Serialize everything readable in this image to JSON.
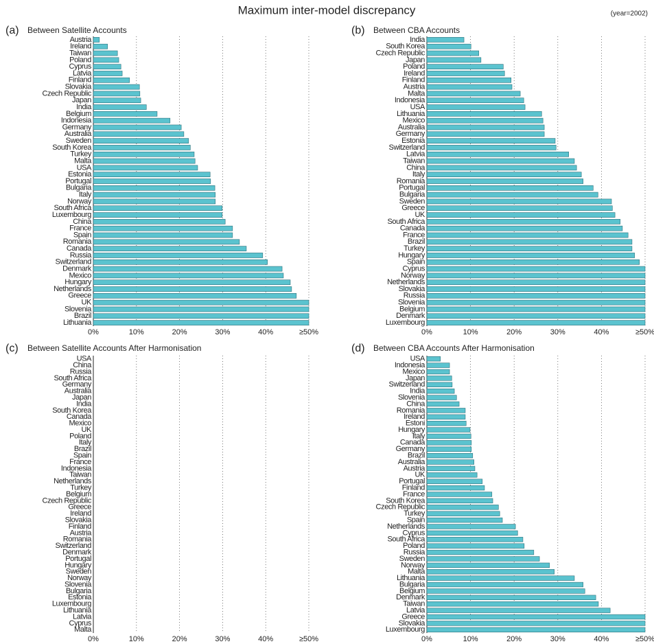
{
  "header": {
    "title": "Maximum inter-model discrepancy",
    "note": "(year=2002)"
  },
  "chart_data": [
    {
      "type": "bar",
      "orientation": "horizontal",
      "label": "(a)",
      "title": "Between Satellite Accounts",
      "color": "#5bc3cf",
      "categories": [
        "Austria",
        "Ireland",
        "Taiwan",
        "Poland",
        "Cyprus",
        "Latvia",
        "Finland",
        "Slovakia",
        "Czech Republic",
        "Japan",
        "India",
        "Belgium",
        "Indonesia",
        "Germany",
        "Australia",
        "Sweden",
        "South Korea",
        "Turkey",
        "Malta",
        "USA",
        "Estonia",
        "Portugal",
        "Bulgaria",
        "Italy",
        "Norway",
        "South Africa",
        "Luxembourg",
        "China",
        "France",
        "Spain",
        "Romania",
        "Canada",
        "Russia",
        "Switzerland",
        "Denmark",
        "Mexico",
        "Hungary",
        "Netherlands",
        "Greece",
        "UK",
        "Slovenia",
        "Brazil",
        "Lithuania"
      ],
      "values": [
        1.4,
        3.3,
        5.6,
        5.9,
        6.4,
        6.7,
        8.4,
        10.7,
        10.8,
        11.0,
        12.3,
        14.8,
        17.8,
        20.4,
        21.0,
        22.1,
        22.5,
        23.4,
        23.6,
        24.2,
        27.1,
        27.2,
        28.2,
        28.3,
        28.3,
        29.9,
        29.9,
        30.6,
        32.3,
        32.3,
        33.9,
        35.5,
        39.3,
        40.4,
        43.8,
        44.1,
        45.7,
        46.0,
        47.1,
        50,
        50,
        50,
        50
      ],
      "xlim": [
        0,
        50
      ],
      "xticks": [
        {
          "value": 0,
          "label": "0%"
        },
        {
          "value": 10,
          "label": "10%"
        },
        {
          "value": 20,
          "label": "20%"
        },
        {
          "value": 30,
          "label": "30%"
        },
        {
          "value": 40,
          "label": "40%"
        },
        {
          "value": 50,
          "label": "≥50%"
        }
      ],
      "grid": true
    },
    {
      "type": "bar",
      "orientation": "horizontal",
      "label": "(b)",
      "title": "Between CBA Accounts",
      "color": "#5bc3cf",
      "categories": [
        "India",
        "South Korea",
        "Czech Republic",
        "Japan",
        "Poland",
        "Ireland",
        "Finland",
        "Austria",
        "Malta",
        "Indonesia",
        "USA",
        "Lithuania",
        "Mexico",
        "Australia",
        "Germany",
        "Estonia",
        "Switzerland",
        "Latvia",
        "Taiwan",
        "China",
        "Italy",
        "Romania",
        "Portugal",
        "Bulgaria",
        "Sweden",
        "Greece",
        "UK",
        "South Africa",
        "Canada",
        "France",
        "Brazil",
        "Turkey",
        "Hungary",
        "Spain",
        "Cyprus",
        "Norway",
        "Netherlands",
        "Slovakia",
        "Russia",
        "Slovenia",
        "Belgium",
        "Denmark",
        "Luxembourg"
      ],
      "values": [
        8.5,
        10.1,
        11.9,
        12.4,
        17.5,
        17.8,
        19.3,
        19.5,
        21.4,
        22.2,
        22.5,
        26.3,
        26.6,
        26.9,
        26.9,
        29.4,
        29.6,
        32.5,
        33.8,
        34.3,
        35.4,
        35.8,
        38.1,
        39.2,
        42.3,
        42.5,
        43.1,
        44.3,
        44.8,
        46.1,
        47.0,
        47.0,
        47.6,
        48.7,
        50,
        50,
        50,
        50,
        50,
        50,
        50,
        50,
        50
      ],
      "xlim": [
        0,
        50
      ],
      "xticks": [
        {
          "value": 0,
          "label": "0%"
        },
        {
          "value": 10,
          "label": "10%"
        },
        {
          "value": 20,
          "label": "20%"
        },
        {
          "value": 30,
          "label": "30%"
        },
        {
          "value": 40,
          "label": "40%"
        },
        {
          "value": 50,
          "label": "≥50%"
        }
      ],
      "grid": true
    },
    {
      "type": "bar",
      "orientation": "horizontal",
      "label": "(c)",
      "title": "Between Satellite Accounts After Harmonisation",
      "color": "#5bc3cf",
      "categories": [
        "USA",
        "China",
        "Russia",
        "South Africa",
        "Germany",
        "Australia",
        "Japan",
        "India",
        "South Korea",
        "Canada",
        "Mexico",
        "UK",
        "Poland",
        "Italy",
        "Brazil",
        "Spain",
        "France",
        "Indonesia",
        "Taiwan",
        "Netherlands",
        "Turkey",
        "Belgium",
        "Czech Republic",
        "Greece",
        "Ireland",
        "Slovakia",
        "Finland",
        "Austria",
        "Romania",
        "Switzerland",
        "Denmark",
        "Portugal",
        "Hungary",
        "Sweden",
        "Norway",
        "Slovenia",
        "Bulgaria",
        "Estonia",
        "Luxembourg",
        "Lithuania",
        "Latvia",
        "Cyprus",
        "Malta"
      ],
      "values": [
        0,
        0,
        0,
        0,
        0,
        0,
        0,
        0,
        0,
        0,
        0,
        0,
        0,
        0,
        0,
        0,
        0,
        0,
        0,
        0,
        0,
        0,
        0,
        0,
        0,
        0,
        0,
        0,
        0,
        0,
        0,
        0,
        0,
        0,
        0,
        0,
        0,
        0,
        0,
        0,
        0,
        0,
        0
      ],
      "xlim": [
        0,
        50
      ],
      "xticks": [
        {
          "value": 0,
          "label": "0%"
        },
        {
          "value": 10,
          "label": "10%"
        },
        {
          "value": 20,
          "label": "20%"
        },
        {
          "value": 30,
          "label": "30%"
        },
        {
          "value": 40,
          "label": "40%"
        },
        {
          "value": 50,
          "label": "≥50%"
        }
      ],
      "grid": true
    },
    {
      "type": "bar",
      "orientation": "horizontal",
      "label": "(d)",
      "title": "Between CBA Accounts After Harmonisation",
      "color": "#5bc3cf",
      "categories": [
        "USA",
        "Indonesia",
        "Mexico",
        "Japan",
        "Switzerland",
        "India",
        "Slovenia",
        "China",
        "Romania",
        "Ireland",
        "Estoni",
        "Hungary",
        "Italy",
        "Canada",
        "Germany",
        "Brazil",
        "Australia",
        "Austria",
        "UK",
        "Portugal",
        "Finland",
        "France",
        "South Korea",
        "Czech Republic",
        "Turkey",
        "Spain",
        "Netherlands",
        "Cyprus",
        "South Africa",
        "Poland",
        "Russia",
        "Sweden",
        "Norway",
        "Malta",
        "Lithuania",
        "Bulgaria",
        "Belgium",
        "Denmark",
        "Taiwan",
        "Latvia",
        "Greece",
        "Slovakia",
        "Luxembourg"
      ],
      "values": [
        3.1,
        5.2,
        5.2,
        5.7,
        5.8,
        6.3,
        6.8,
        7.4,
        8.8,
        8.8,
        9.0,
        9.9,
        10.1,
        10.2,
        10.2,
        10.5,
        10.8,
        11.0,
        11.5,
        12.7,
        13.2,
        14.9,
        15.1,
        16.4,
        16.7,
        17.3,
        20.3,
        20.8,
        22.0,
        22.3,
        24.5,
        25.8,
        28.1,
        29.2,
        33.8,
        35.8,
        36.2,
        38.7,
        39.3,
        42.0,
        50,
        50,
        50
      ],
      "xlim": [
        0,
        50
      ],
      "xticks": [
        {
          "value": 0,
          "label": "0%"
        },
        {
          "value": 10,
          "label": "10%"
        },
        {
          "value": 20,
          "label": "20%"
        },
        {
          "value": 30,
          "label": "30%"
        },
        {
          "value": 40,
          "label": "40%"
        },
        {
          "value": 50,
          "label": "≥50%"
        }
      ],
      "grid": true
    }
  ]
}
